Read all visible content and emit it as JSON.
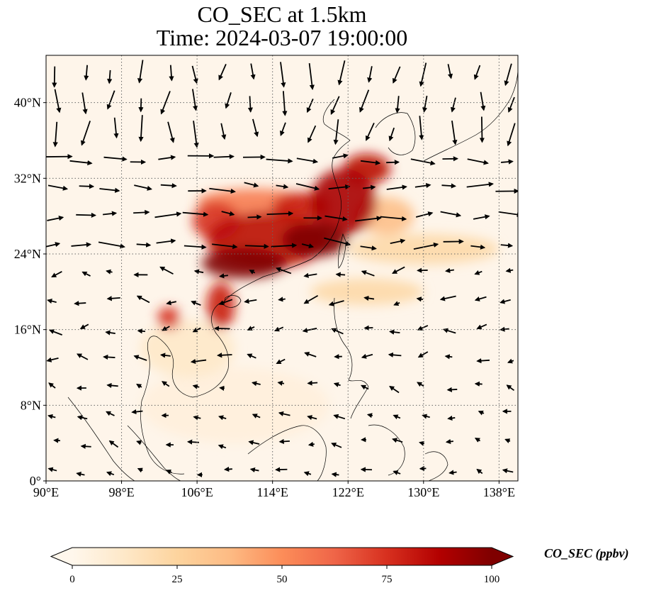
{
  "title": {
    "line1": "CO_SEC at 1.5km",
    "line2": "Time: 2024-03-07 19:00:00"
  },
  "colorbar": {
    "title": "CO_SEC (ppbv)",
    "ticks": [
      0,
      25,
      50,
      75,
      100
    ],
    "tick_labels": [
      "0",
      "25",
      "50",
      "75",
      "100"
    ],
    "range": [
      0,
      100
    ],
    "extend": "both",
    "colormap": "OrRd",
    "stops": [
      "#fff7ec",
      "#fee8c8",
      "#fdd49e",
      "#fdbb84",
      "#fc8d59",
      "#ef6548",
      "#d7301f",
      "#b30000",
      "#7f0000"
    ]
  },
  "chart_data": {
    "type": "heatmap",
    "subtype": "map with wind vectors",
    "variable": "CO_SEC",
    "level": "1.5km",
    "time": "2024-03-07 19:00:00",
    "units": "ppbv",
    "x_range": [
      90,
      140
    ],
    "y_range": [
      0,
      45
    ],
    "x_ticks": [
      90,
      98,
      106,
      114,
      122,
      130,
      138
    ],
    "x_tick_labels": [
      "90°E",
      "98°E",
      "106°E",
      "114°E",
      "122°E",
      "130°E",
      "138°E"
    ],
    "y_ticks": [
      0,
      8,
      16,
      24,
      32,
      40
    ],
    "y_tick_labels": [
      "0°",
      "8°N",
      "16°N",
      "24°N",
      "32°N",
      "40°N"
    ],
    "grid": true,
    "grid_style": "dotted",
    "plumes": [
      {
        "lon": 111.0,
        "lat": 23.0,
        "rlon": 4.5,
        "rlat": 1.6,
        "value": 100
      },
      {
        "lon": 118.5,
        "lat": 25.5,
        "rlon": 3.5,
        "rlat": 1.8,
        "value": 100
      },
      {
        "lon": 113.5,
        "lat": 25.5,
        "rlon": 6.5,
        "rlat": 3.0,
        "value": 85
      },
      {
        "lon": 121.5,
        "lat": 29.5,
        "rlon": 3.5,
        "rlat": 3.5,
        "value": 90
      },
      {
        "lon": 124.0,
        "lat": 33.0,
        "rlon": 2.5,
        "rlat": 1.6,
        "value": 85
      },
      {
        "lon": 108.0,
        "lat": 27.5,
        "rlon": 2.5,
        "rlat": 2.0,
        "value": 75
      },
      {
        "lon": 117.0,
        "lat": 29.0,
        "rlon": 3.0,
        "rlat": 1.5,
        "value": 80
      },
      {
        "lon": 108.5,
        "lat": 18.5,
        "rlon": 1.5,
        "rlat": 2.5,
        "value": 80
      },
      {
        "lon": 103.0,
        "lat": 17.2,
        "rlon": 1.2,
        "rlat": 1.2,
        "value": 75
      },
      {
        "lon": 112.0,
        "lat": 29.5,
        "rlon": 6.0,
        "rlat": 1.4,
        "value": 55
      },
      {
        "lon": 126.0,
        "lat": 28.0,
        "rlon": 3.0,
        "rlat": 2.0,
        "value": 35
      },
      {
        "lon": 130.0,
        "lat": 24.5,
        "rlon": 8.0,
        "rlat": 1.6,
        "value": 22
      },
      {
        "lon": 124.0,
        "lat": 20.0,
        "rlon": 6.0,
        "rlat": 1.4,
        "value": 22
      },
      {
        "lon": 105.0,
        "lat": 14.0,
        "rlon": 5.0,
        "rlat": 3.0,
        "value": 12
      },
      {
        "lon": 110.0,
        "lat": 8.0,
        "rlon": 10.0,
        "rlat": 4.0,
        "value": 6
      }
    ],
    "wind_grid": {
      "lon_start": 91,
      "lon_end": 139,
      "lon_step": 3,
      "lat_start": 1,
      "lat_end": 44,
      "lat_step": 3
    }
  }
}
